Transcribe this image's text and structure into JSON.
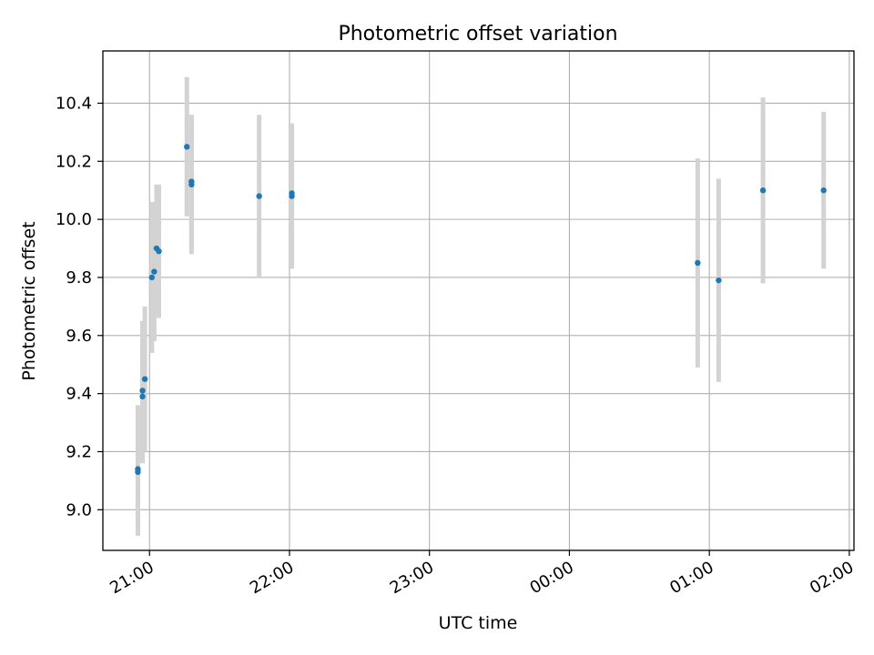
{
  "chart_data": {
    "type": "scatter",
    "title": "Photometric offset variation",
    "xlabel": "UTC time",
    "ylabel": "Photometric offset",
    "x_axis": {
      "kind": "time",
      "tick_labels": [
        "21:00",
        "22:00",
        "23:00",
        "00:00",
        "01:00",
        "02:00"
      ],
      "tick_times": [
        "21:00",
        "22:00",
        "23:00",
        "00:00",
        "01:00",
        "02:00"
      ],
      "tick_label_rotation": "30 degrees",
      "range": [
        "20:40",
        "02:02"
      ]
    },
    "y_axis": {
      "tick_labels": [
        "9.0",
        "9.2",
        "9.4",
        "9.6",
        "9.8",
        "10.0",
        "10.2",
        "10.4"
      ],
      "tick_values": [
        9.0,
        9.2,
        9.4,
        9.6,
        9.8,
        10.0,
        10.2,
        10.4
      ],
      "range": [
        8.86,
        10.58
      ]
    },
    "grid": true,
    "legend": "none",
    "colors": {
      "points": "#1f77b4",
      "error_bars": "#d3d3d3",
      "grid": "#b0b0b0"
    },
    "points": [
      {
        "time": "20:55",
        "y": 9.13,
        "err": 0.22
      },
      {
        "time": "20:55",
        "y": 9.14,
        "err": 0.22
      },
      {
        "time": "20:57",
        "y": 9.39,
        "err": 0.23
      },
      {
        "time": "20:57",
        "y": 9.41,
        "err": 0.24
      },
      {
        "time": "20:58",
        "y": 9.45,
        "err": 0.25
      },
      {
        "time": "21:01",
        "y": 9.8,
        "err": 0.26
      },
      {
        "time": "21:02",
        "y": 9.82,
        "err": 0.24
      },
      {
        "time": "21:03",
        "y": 9.9,
        "err": 0.22
      },
      {
        "time": "21:04",
        "y": 9.89,
        "err": 0.23
      },
      {
        "time": "21:16",
        "y": 10.25,
        "err": 0.24
      },
      {
        "time": "21:18",
        "y": 10.12,
        "err": 0.24
      },
      {
        "time": "21:18",
        "y": 10.13,
        "err": 0.23
      },
      {
        "time": "21:47",
        "y": 10.08,
        "err": 0.28
      },
      {
        "time": "22:01",
        "y": 10.09,
        "err": 0.24
      },
      {
        "time": "22:01",
        "y": 10.08,
        "err": 0.25
      },
      {
        "time": "00:55",
        "y": 9.85,
        "err": 0.36
      },
      {
        "time": "01:04",
        "y": 9.79,
        "err": 0.35
      },
      {
        "time": "01:23",
        "y": 10.1,
        "err": 0.32
      },
      {
        "time": "01:49",
        "y": 10.1,
        "err": 0.27
      }
    ]
  }
}
